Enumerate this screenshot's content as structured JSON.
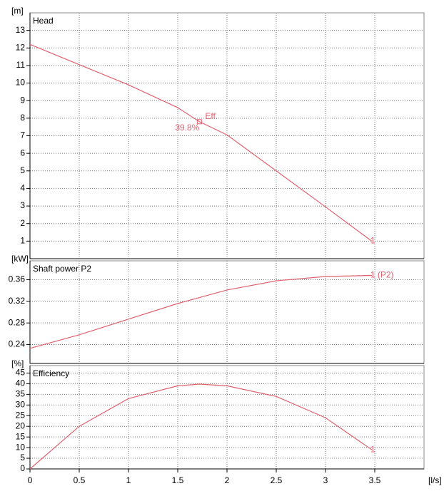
{
  "chart_data": [
    {
      "type": "line",
      "title": "Head",
      "y_unit": "[m]",
      "x": [
        0,
        0.5,
        1,
        1.5,
        1.72,
        2,
        2.5,
        3,
        3.47
      ],
      "series": [
        {
          "name": "1",
          "color": "#e0606e",
          "values": [
            12.2,
            11.05,
            9.9,
            8.6,
            7.8,
            7.05,
            5.0,
            2.95,
            1.0
          ]
        }
      ],
      "xlim": [
        0,
        4
      ],
      "xticks": [
        0,
        0.5,
        1,
        1.5,
        2,
        2.5,
        3,
        3.5
      ],
      "ylim": [
        0,
        14
      ],
      "yticks": [
        1,
        2,
        3,
        4,
        5,
        6,
        7,
        8,
        9,
        10,
        11,
        12,
        13
      ],
      "grid": true,
      "annotations": [
        {
          "text": "Eff.",
          "x": 1.72,
          "y": 7.8
        },
        {
          "text": "39.8%",
          "x": 1.72,
          "y": 7.8
        }
      ]
    },
    {
      "type": "line",
      "title": "Shaft power P2",
      "y_unit": "[kW]",
      "x": [
        0,
        0.5,
        1,
        1.5,
        2,
        2.5,
        3,
        3.47
      ],
      "series": [
        {
          "name": "1 (P2)",
          "color": "#e0606e",
          "values": [
            0.233,
            0.258,
            0.287,
            0.316,
            0.341,
            0.358,
            0.366,
            0.368
          ]
        }
      ],
      "xlim": [
        0,
        4
      ],
      "xticks": [
        0,
        0.5,
        1,
        1.5,
        2,
        2.5,
        3,
        3.5
      ],
      "ylim": [
        0.205,
        0.395
      ],
      "yticks": [
        0.24,
        0.28,
        0.32,
        0.36
      ],
      "grid": true
    },
    {
      "type": "line",
      "title": "Efficiency",
      "y_unit": "[%]",
      "x_unit": "[l/s]",
      "x": [
        0,
        0.5,
        1,
        1.5,
        1.72,
        2,
        2.5,
        3,
        3.47
      ],
      "series": [
        {
          "name": "1",
          "color": "#e0606e",
          "values": [
            0,
            20,
            33,
            39,
            39.8,
            39,
            34,
            24,
            9
          ]
        }
      ],
      "xlim": [
        0,
        4
      ],
      "xticks": [
        0,
        0.5,
        1,
        1.5,
        2,
        2.5,
        3,
        3.5
      ],
      "ylim": [
        0,
        48.5
      ],
      "yticks": [
        0,
        5,
        10,
        15,
        20,
        25,
        30,
        35,
        40,
        45
      ],
      "grid": true
    }
  ]
}
